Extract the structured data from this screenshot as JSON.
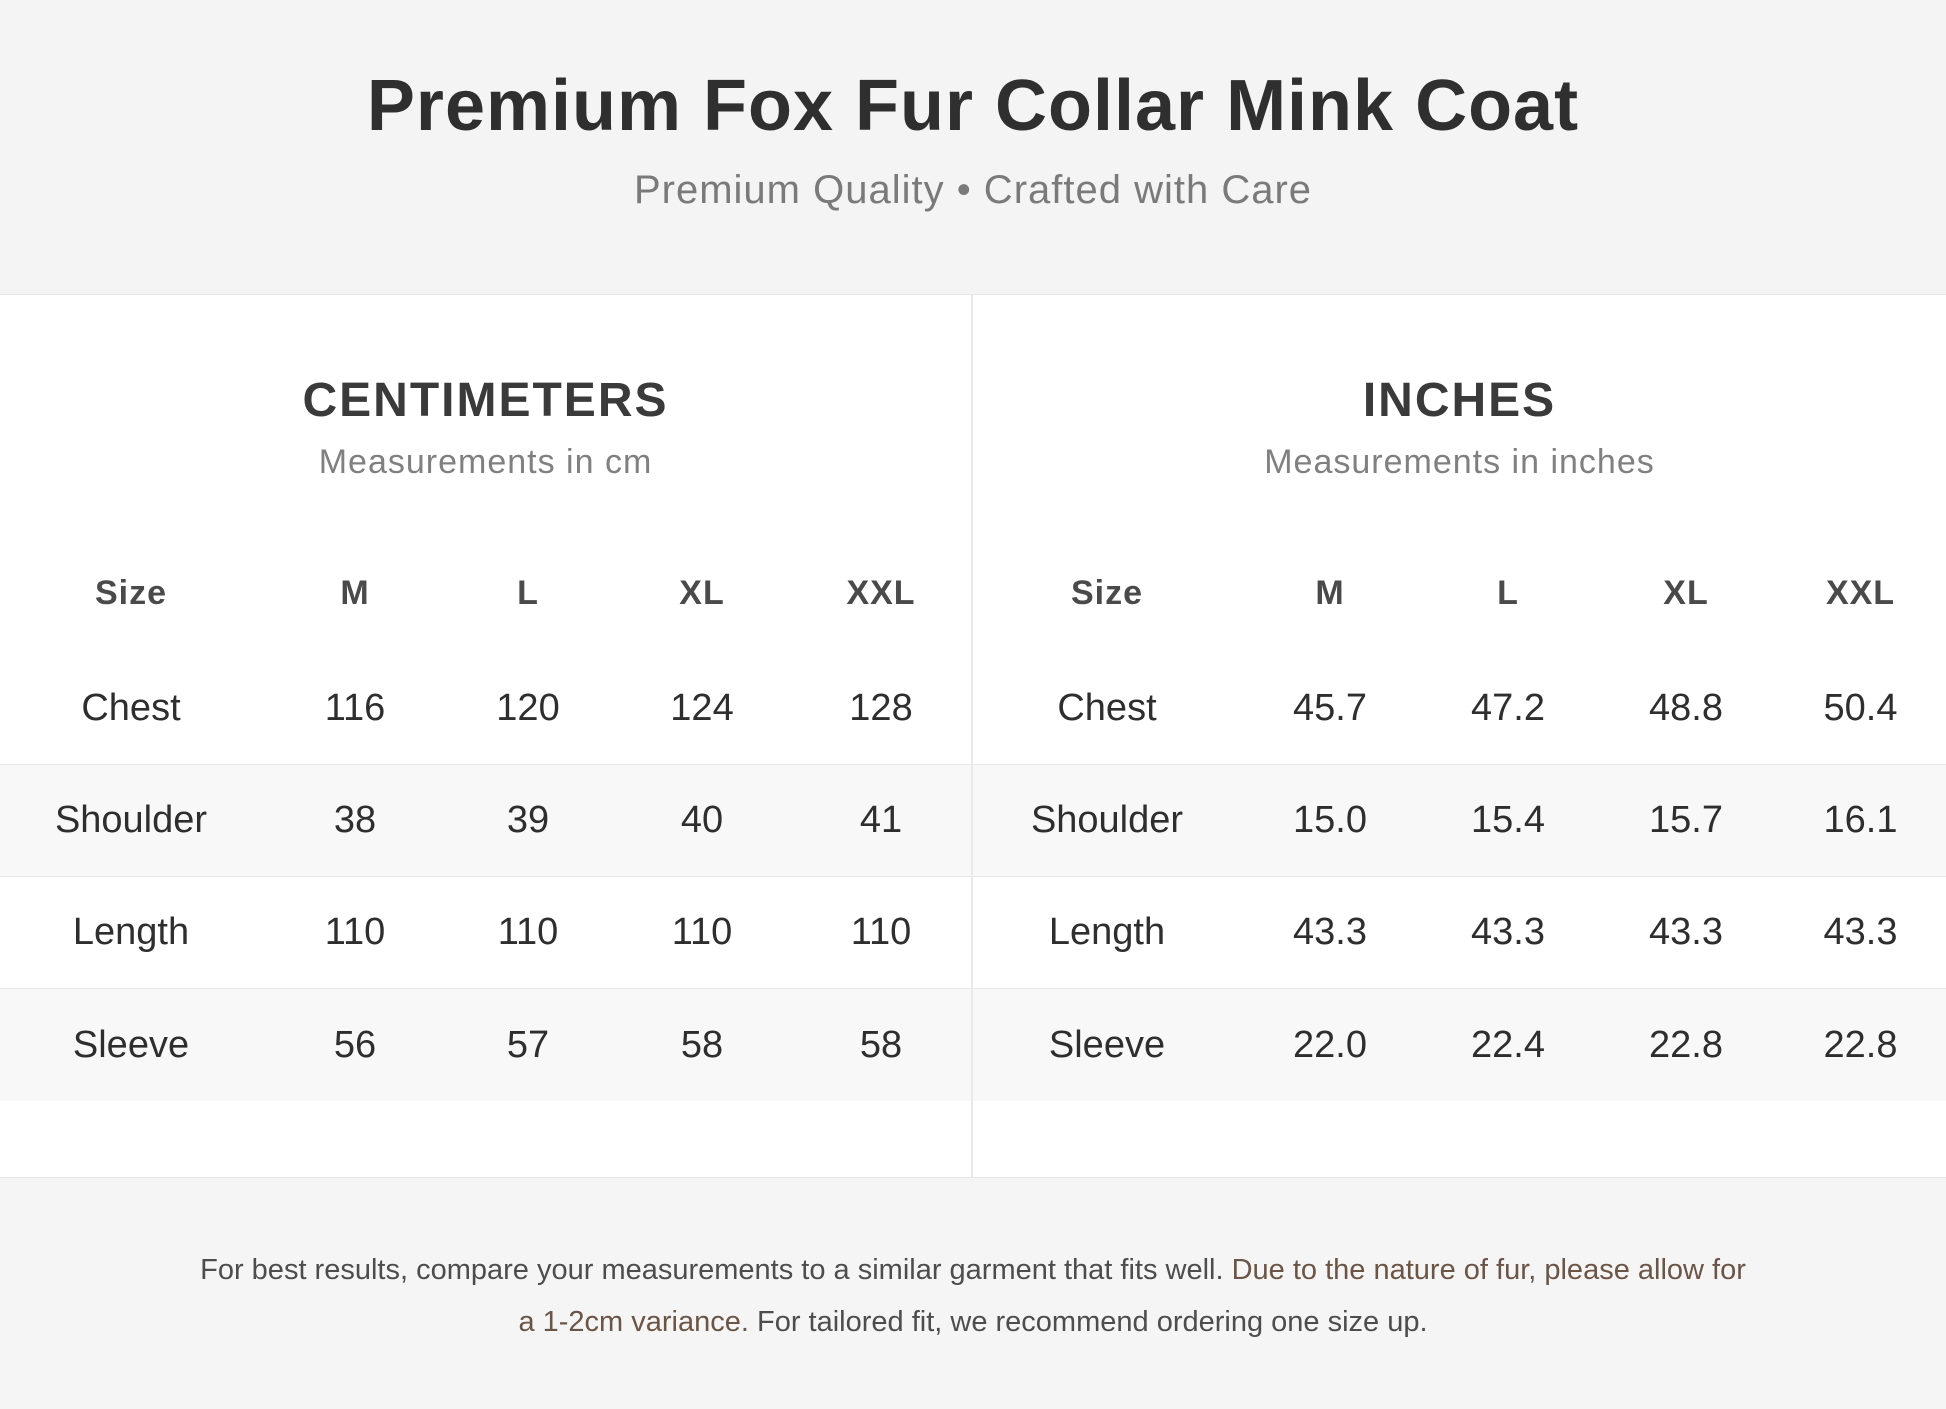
{
  "header": {
    "title": "Premium Fox Fur Collar Mink Coat",
    "subtitle": "Premium Quality • Crafted with Care"
  },
  "centimeters": {
    "title": "CENTIMETERS",
    "subtitle": "Measurements in cm",
    "columns": [
      "Size",
      "M",
      "L",
      "XL",
      "XXL"
    ],
    "rows": [
      [
        "Chest",
        "116",
        "120",
        "124",
        "128"
      ],
      [
        "Shoulder",
        "38",
        "39",
        "40",
        "41"
      ],
      [
        "Length",
        "110",
        "110",
        "110",
        "110"
      ],
      [
        "Sleeve",
        "56",
        "57",
        "58",
        "58"
      ]
    ]
  },
  "inches": {
    "title": "INCHES",
    "subtitle": "Measurements in inches",
    "columns": [
      "Size",
      "M",
      "L",
      "XL",
      "XXL"
    ],
    "rows": [
      [
        "Chest",
        "45.7",
        "47.2",
        "48.8",
        "50.4"
      ],
      [
        "Shoulder",
        "15.0",
        "15.4",
        "15.7",
        "16.1"
      ],
      [
        "Length",
        "43.3",
        "43.3",
        "43.3",
        "43.3"
      ],
      [
        "Sleeve",
        "22.0",
        "22.4",
        "22.8",
        "22.8"
      ]
    ]
  },
  "footer": {
    "note_start": "For best results, compare your measurements to a similar garment that fits well. ",
    "note_emphasis": "Due to the nature of fur, please allow for a 1-2cm variance.",
    "note_end": " For tailored fit, we recommend ordering one size up."
  },
  "colors": {
    "emphasis_text": "#6b5546",
    "header_background": "#f4f4f4",
    "table_background": "#ffffff"
  }
}
